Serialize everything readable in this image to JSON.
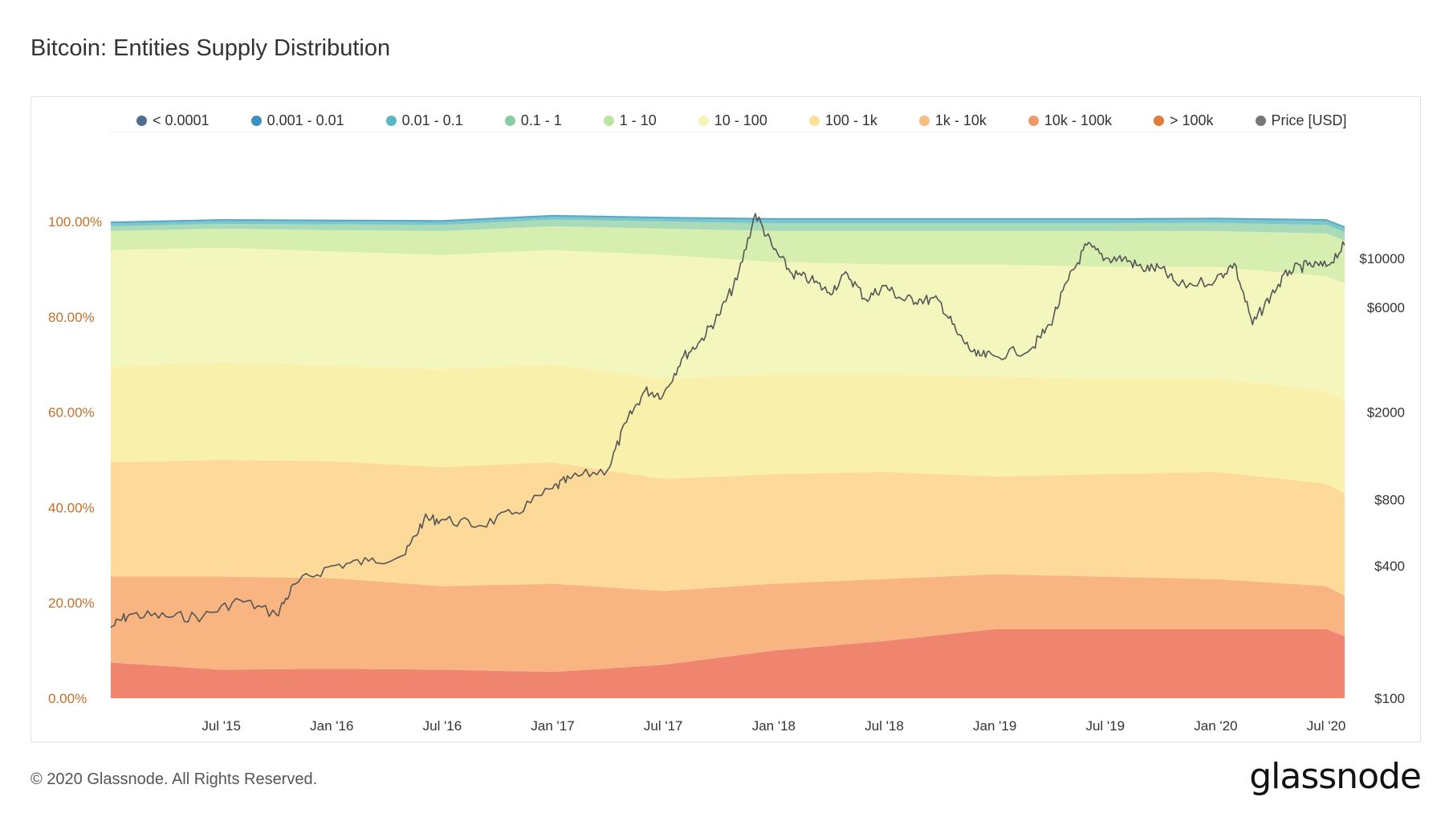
{
  "title": "Bitcoin: Entities Supply Distribution",
  "footer": "© 2020 Glassnode. All Rights Reserved.",
  "brand": "glassnode",
  "watermark": "glassnode",
  "legend": [
    {
      "label": "< 0.0001",
      "color": "#4f6d8f"
    },
    {
      "label": "0.001 - 0.01",
      "color": "#3d8fc2"
    },
    {
      "label": "0.01 - 0.1",
      "color": "#5ab7c4"
    },
    {
      "label": "0.1 - 1",
      "color": "#86cfa5"
    },
    {
      "label": "1 - 10",
      "color": "#bfe3a0"
    },
    {
      "label": "10 - 100",
      "color": "#f3f5b4"
    },
    {
      "label": "100 - 1k",
      "color": "#fbe29c"
    },
    {
      "label": "1k - 10k",
      "color": "#f8bd83"
    },
    {
      "label": "10k - 100k",
      "color": "#f19a69"
    },
    {
      "label": "> 100k",
      "color": "#e07b3c"
    },
    {
      "label": "Price [USD]",
      "color": "#777777"
    }
  ],
  "chart_data": {
    "type": "area",
    "stacked": true,
    "x": [
      "2015-01",
      "2015-07",
      "2016-01",
      "2016-07",
      "2017-01",
      "2017-07",
      "2018-01",
      "2018-07",
      "2019-01",
      "2019-07",
      "2020-01",
      "2020-07",
      "2020-08"
    ],
    "x_tick_labels": [
      "Jul '15",
      "Jan '16",
      "Jul '16",
      "Jan '17",
      "Jul '17",
      "Jan '18",
      "Jul '18",
      "Jan '19",
      "Jul '19",
      "Jan '20",
      "Jul '20"
    ],
    "x_tick_dates": [
      "2015-07",
      "2016-01",
      "2016-07",
      "2017-01",
      "2017-07",
      "2018-01",
      "2018-07",
      "2019-01",
      "2019-07",
      "2020-01",
      "2020-07"
    ],
    "y_left_ticks": [
      "0.00%",
      "20.00%",
      "40.00%",
      "60.00%",
      "80.00%",
      "100.00%"
    ],
    "y_left_range": [
      0,
      100
    ],
    "y_right_ticks": [
      "$100",
      "$400",
      "$800",
      "$2000",
      "$6000",
      "$10000"
    ],
    "y_right_tick_values": [
      100,
      400,
      800,
      2000,
      6000,
      10000
    ],
    "y_right_scale": "log",
    "legend_position": "top",
    "series": [
      {
        "name": "10k - 100k",
        "color": "#f0856f",
        "values": [
          7.5,
          6.0,
          6.2,
          6.0,
          5.5,
          7.0,
          10.0,
          12.0,
          14.5,
          14.5,
          14.5,
          14.5,
          13.0
        ]
      },
      {
        "name": "1k - 10k",
        "color": "#f8b582",
        "values": [
          18.0,
          19.5,
          19.0,
          17.5,
          18.5,
          15.5,
          14.0,
          13.0,
          11.5,
          11.0,
          10.5,
          9.0,
          8.5
        ]
      },
      {
        "name": "100 - 1k",
        "color": "#fdd99a",
        "values": [
          24.0,
          24.5,
          24.5,
          25.0,
          25.5,
          23.5,
          23.0,
          22.5,
          20.5,
          21.5,
          22.5,
          21.5,
          21.5
        ]
      },
      {
        "name": "10 - 100",
        "color": "#f9f0ac",
        "values": [
          20.0,
          20.5,
          20.0,
          20.5,
          20.5,
          21.0,
          21.0,
          20.5,
          21.0,
          20.0,
          19.5,
          19.5,
          19.5
        ]
      },
      {
        "name": "1 - 10",
        "color": "#f4f7bd",
        "values": [
          24.5,
          24.0,
          24.0,
          24.0,
          24.0,
          26.0,
          23.5,
          23.0,
          23.5,
          23.5,
          23.5,
          24.0,
          24.5
        ]
      },
      {
        "name": "0.1 - 1",
        "color": "#d6eeb0",
        "values": [
          4.0,
          4.0,
          4.5,
          5.0,
          5.0,
          5.5,
          6.5,
          7.0,
          7.0,
          7.5,
          7.5,
          9.0,
          9.0
        ]
      },
      {
        "name": "0.01 - 0.1",
        "color": "#a9dbb8",
        "values": [
          1.0,
          1.0,
          1.2,
          1.3,
          1.4,
          1.5,
          1.6,
          1.6,
          1.6,
          1.6,
          1.7,
          1.8,
          1.8
        ]
      },
      {
        "name": "0.001 - 0.01",
        "color": "#7cc7c9",
        "values": [
          0.6,
          0.6,
          0.6,
          0.6,
          0.6,
          0.6,
          0.7,
          0.7,
          0.7,
          0.7,
          0.7,
          0.8,
          0.8
        ]
      },
      {
        "name": "< 0.0001",
        "color": "#5aa9c9",
        "values": [
          0.4,
          0.4,
          0.4,
          0.4,
          0.4,
          0.4,
          0.4,
          0.4,
          0.4,
          0.4,
          0.4,
          0.4,
          0.4
        ]
      }
    ],
    "price": {
      "name": "Price [USD]",
      "color": "#555555",
      "x": [
        "2015-01",
        "2015-02",
        "2015-04",
        "2015-06",
        "2015-08",
        "2015-10",
        "2015-11",
        "2016-01",
        "2016-03",
        "2016-05",
        "2016-06",
        "2016-07",
        "2016-09",
        "2016-11",
        "2017-01",
        "2017-02",
        "2017-04",
        "2017-05",
        "2017-06",
        "2017-07",
        "2017-08",
        "2017-09",
        "2017-10",
        "2017-11",
        "2017-12",
        "2018-01",
        "2018-02",
        "2018-03",
        "2018-04",
        "2018-05",
        "2018-06",
        "2018-07",
        "2018-08",
        "2018-09",
        "2018-10",
        "2018-11",
        "2018-12",
        "2019-01",
        "2019-03",
        "2019-04",
        "2019-05",
        "2019-06",
        "2019-07",
        "2019-08",
        "2019-09",
        "2019-10",
        "2019-11",
        "2020-01",
        "2020-02",
        "2020-03",
        "2020-04",
        "2020-05",
        "2020-06",
        "2020-07",
        "2020-08"
      ],
      "y": [
        210,
        240,
        235,
        235,
        280,
        240,
        330,
        400,
        420,
        450,
        650,
        650,
        610,
        700,
        900,
        1000,
        1100,
        1800,
        2500,
        2400,
        3500,
        4200,
        5500,
        8000,
        16000,
        11000,
        8500,
        8000,
        7000,
        8500,
        6500,
        7500,
        6500,
        6500,
        6400,
        4500,
        3600,
        3600,
        3900,
        5000,
        8000,
        11500,
        10000,
        10000,
        9000,
        9000,
        7500,
        8000,
        9500,
        5000,
        6800,
        8800,
        9300,
        9200,
        11500
      ]
    }
  }
}
